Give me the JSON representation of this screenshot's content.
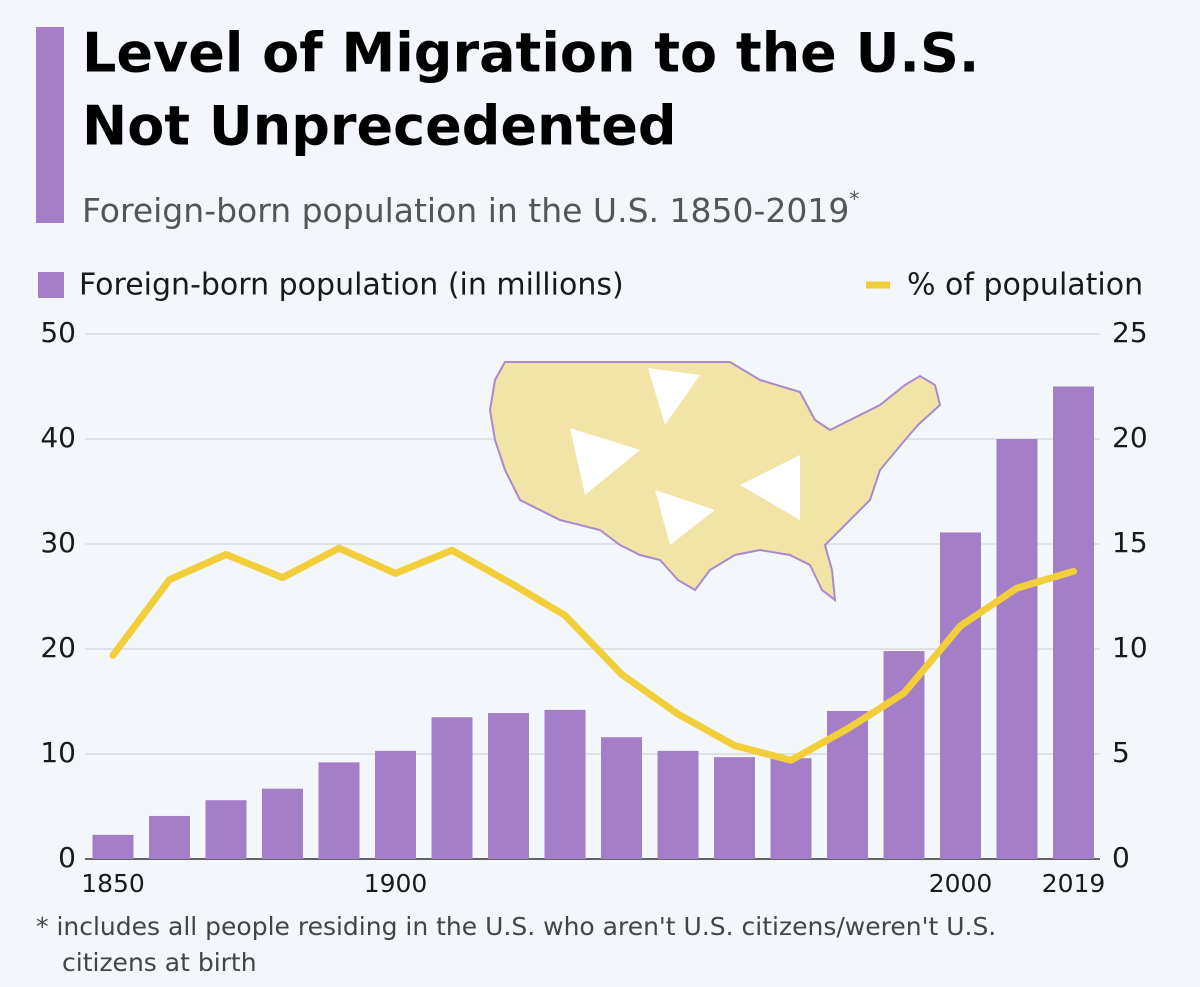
{
  "chart_data": {
    "type": "bar",
    "title": [
      "Level of Migration to the U.S.",
      "Not Unprecedented"
    ],
    "subtitle": "Foreign-born population in the U.S. 1850-2019",
    "subtitle_note": "*",
    "footnote": [
      "* includes all people residing in the U.S. who aren't U.S. citizens/weren't U.S.",
      "citizens at birth"
    ],
    "categories": [
      "1850",
      null,
      null,
      null,
      null,
      "1900",
      null,
      null,
      null,
      null,
      null,
      null,
      null,
      null,
      null,
      "2000",
      null,
      "2019"
    ],
    "series": [
      {
        "name": "Foreign-born population (in millions)",
        "type": "bar",
        "color": "#a47fc8",
        "values": [
          2.3,
          4.1,
          5.6,
          6.7,
          9.2,
          10.3,
          13.5,
          13.9,
          14.2,
          11.6,
          10.3,
          9.7,
          9.6,
          14.1,
          19.8,
          31.1,
          40.0,
          45.0
        ]
      },
      {
        "name": "% of population",
        "type": "line",
        "axis": "y2",
        "color": "#f2cf3a",
        "values": [
          9.7,
          13.3,
          14.5,
          13.4,
          14.8,
          13.6,
          14.7,
          13.2,
          11.6,
          8.8,
          6.9,
          5.4,
          4.7,
          6.2,
          7.9,
          11.1,
          12.9,
          13.7
        ]
      }
    ],
    "ylim": [
      0,
      50
    ],
    "yticks": [
      0,
      10,
      20,
      30,
      40,
      50
    ],
    "y2lim": [
      0,
      25
    ],
    "y2ticks": [
      0,
      5,
      10,
      15,
      20,
      25
    ],
    "grid": true
  }
}
